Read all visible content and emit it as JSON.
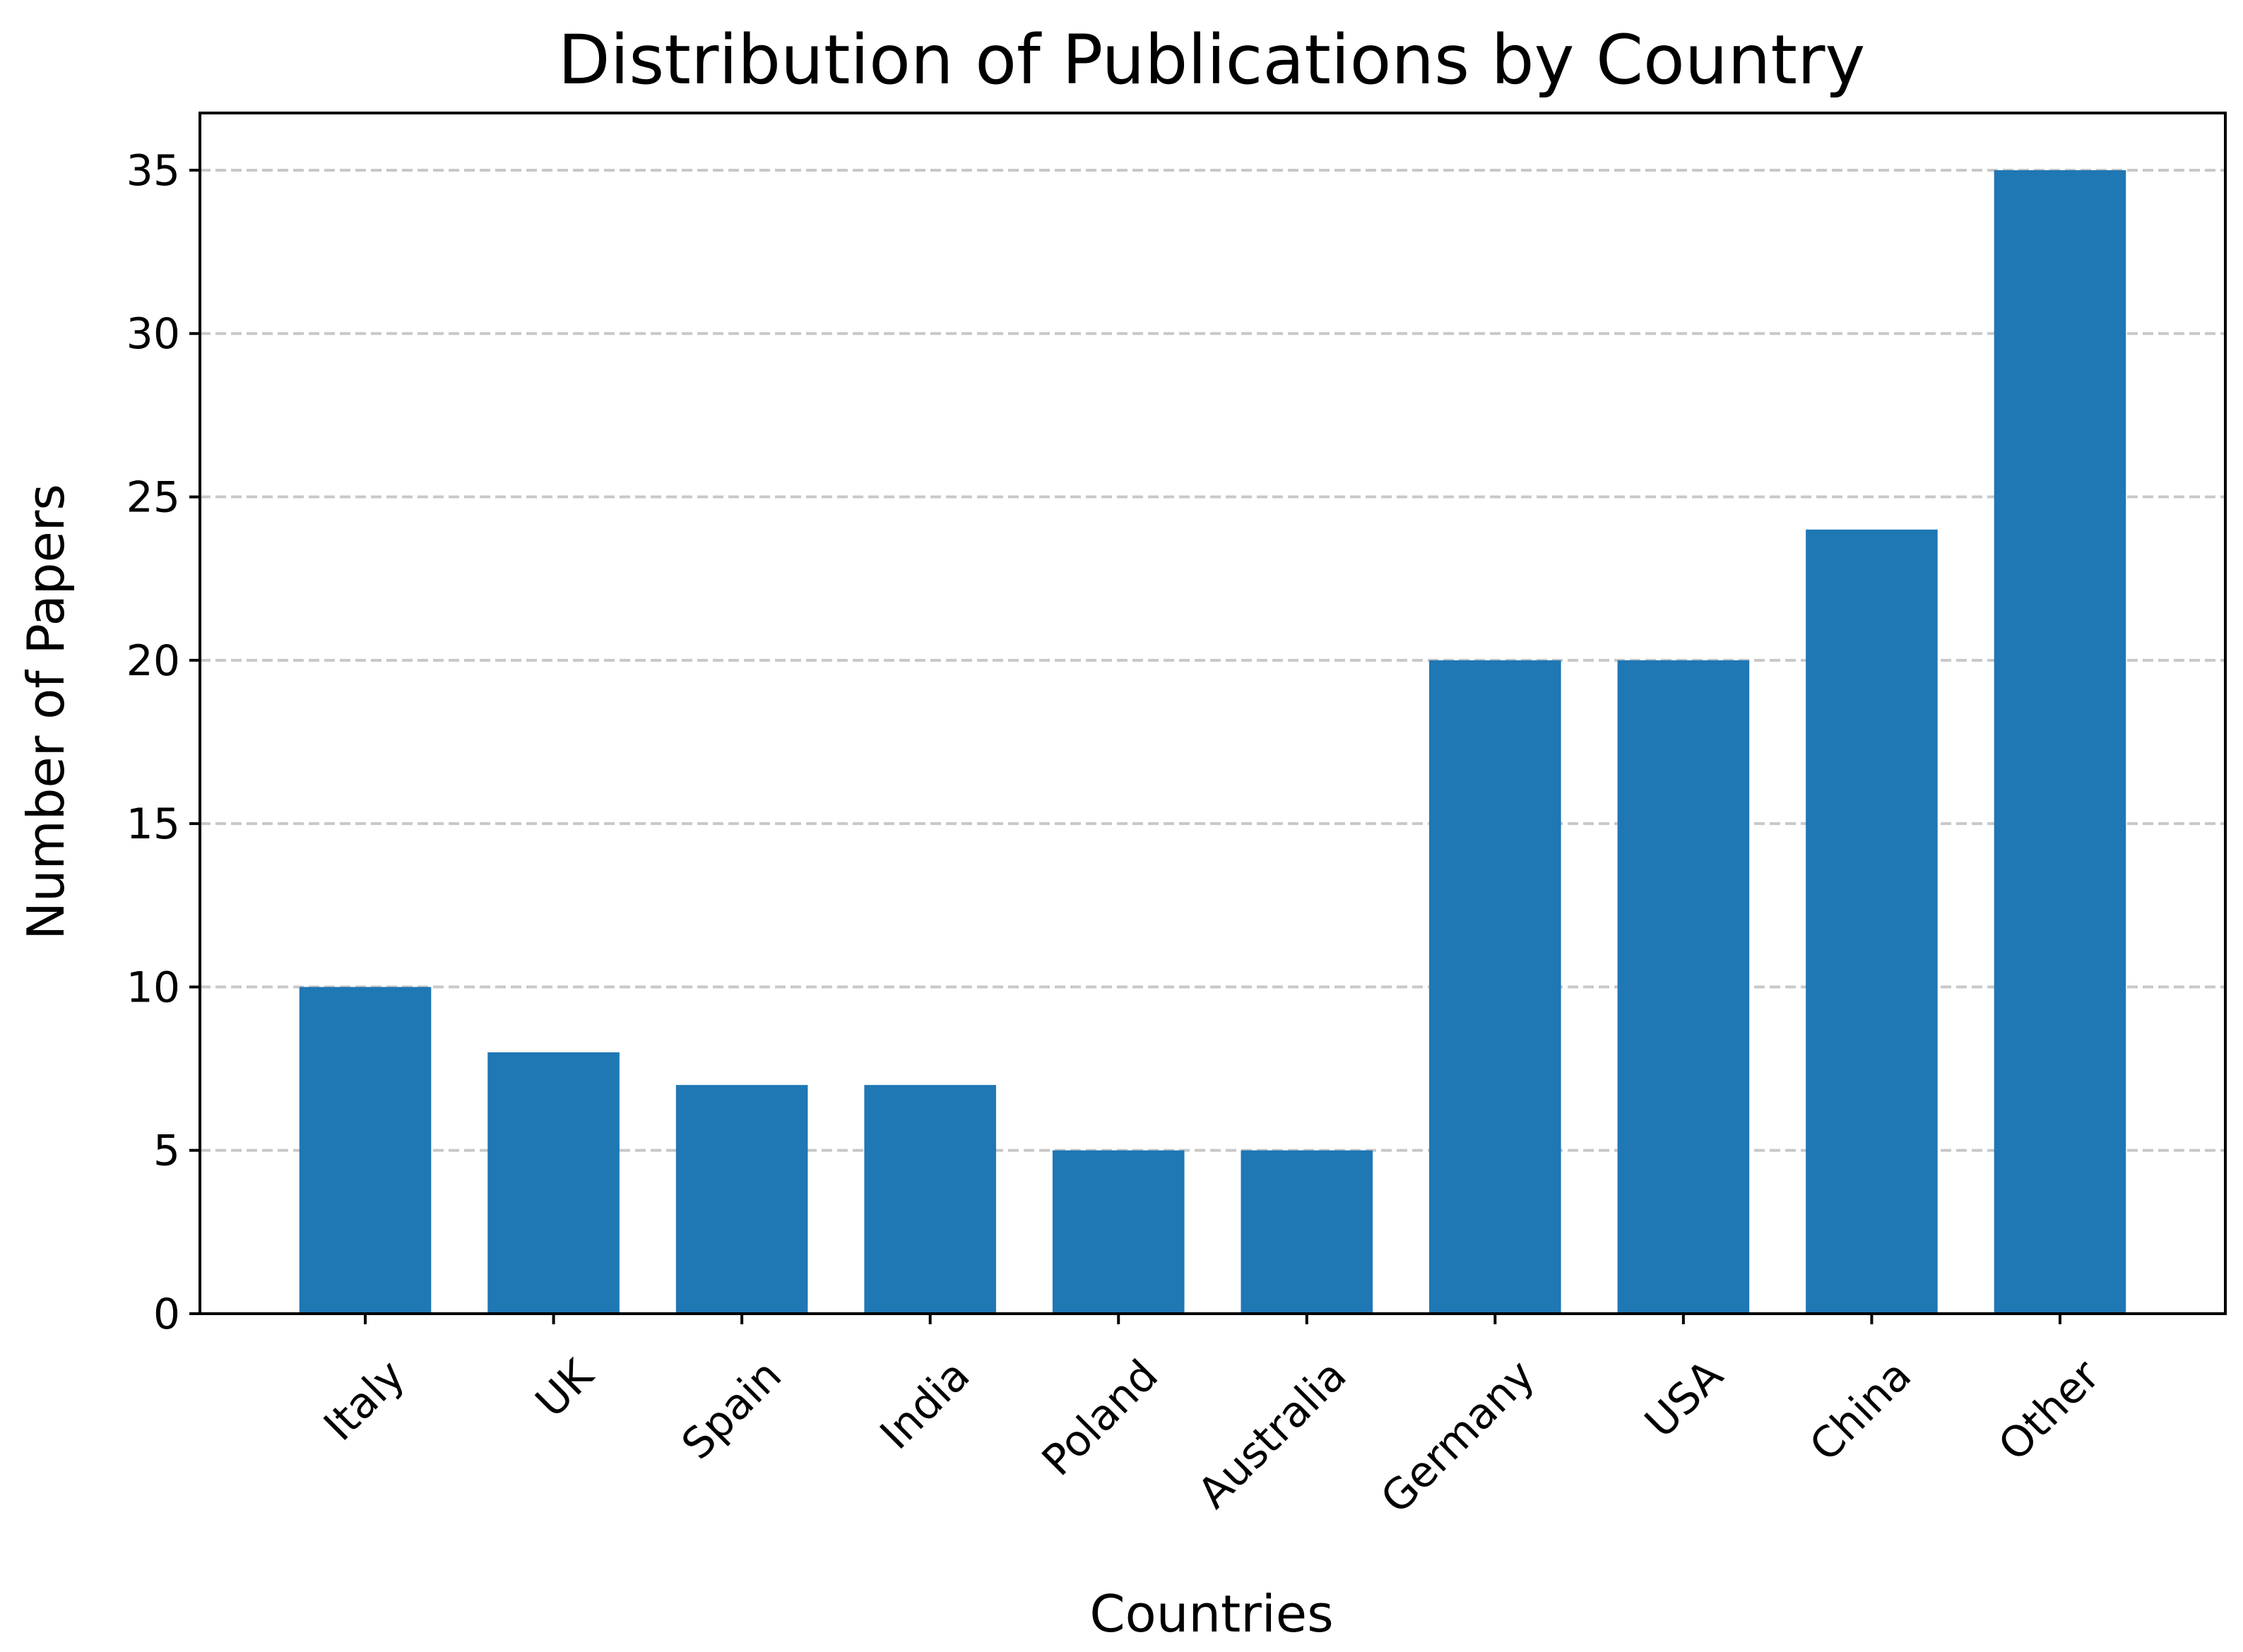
{
  "chart_data": {
    "type": "bar",
    "title": "Distribution of Publications by Country",
    "xlabel": "Countries",
    "ylabel": "Number of Papers",
    "categories": [
      "Italy",
      "UK",
      "Spain",
      "India",
      "Poland",
      "Australia",
      "Germany",
      "USA",
      "China",
      "Other"
    ],
    "values": [
      10,
      8,
      7,
      7,
      5,
      5,
      20,
      20,
      24,
      35
    ],
    "ylim": [
      0,
      36.75
    ],
    "yticks": [
      0,
      5,
      10,
      15,
      20,
      25,
      30,
      35
    ],
    "grid": "horizontal dashed",
    "bar_color": "#1f77b4",
    "grid_color": "#c8c8c8"
  }
}
